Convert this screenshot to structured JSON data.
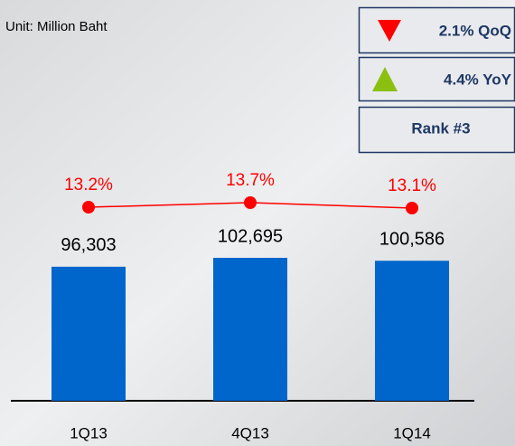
{
  "chart_data": {
    "type": "bar",
    "subtitle": "Unit: Million Baht",
    "annotations": [
      "2.1% QoQ",
      "4.4% YoY",
      "Rank #3"
    ],
    "categories": [
      "1Q13",
      "4Q13",
      "1Q14"
    ],
    "series": [
      {
        "type": "bar",
        "color": "#0066cc",
        "values": [
          96303,
          102695,
          100586
        ],
        "value_labels": [
          "96,303",
          "102,695",
          "100,586"
        ]
      },
      {
        "type": "line",
        "color": "#ff0000",
        "values": [
          13.2,
          13.7,
          13.1
        ],
        "value_labels": [
          "13.2%",
          "13.7%",
          "13.1%"
        ]
      }
    ]
  }
}
